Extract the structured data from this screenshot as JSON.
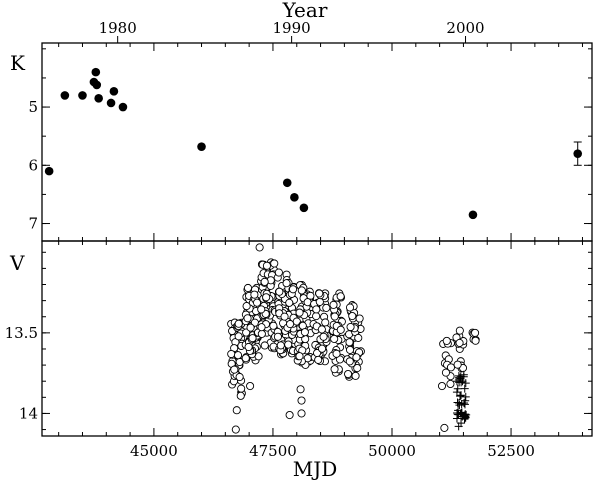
{
  "chart_data": {
    "type": "scatter",
    "xlabel": "MJD",
    "x_top_label": "Year",
    "xlim": [
      42650,
      54200
    ],
    "x_ticks": [
      45000,
      47500,
      50000,
      52500
    ],
    "year_ticks": [
      {
        "label": "1980",
        "mjd": 44239
      },
      {
        "label": "1990",
        "mjd": 47892
      },
      {
        "label": "2000",
        "mjd": 51544
      }
    ],
    "panels": [
      {
        "name": "K",
        "ylabel": "K",
        "ylim": [
          3.9,
          7.3
        ],
        "inverted": true,
        "y_ticks": [
          5,
          6,
          7
        ],
        "series": [
          {
            "marker": "filled-circle",
            "points": [
              {
                "x": 42800,
                "y": 6.1
              },
              {
                "x": 43130,
                "y": 4.8
              },
              {
                "x": 43500,
                "y": 4.8
              },
              {
                "x": 43740,
                "y": 4.57
              },
              {
                "x": 43780,
                "y": 4.4
              },
              {
                "x": 43800,
                "y": 4.62
              },
              {
                "x": 43840,
                "y": 4.85
              },
              {
                "x": 44100,
                "y": 4.93
              },
              {
                "x": 44160,
                "y": 4.73
              },
              {
                "x": 44350,
                "y": 5.0
              },
              {
                "x": 46000,
                "y": 5.68
              },
              {
                "x": 47800,
                "y": 6.3
              },
              {
                "x": 47950,
                "y": 6.55
              },
              {
                "x": 48150,
                "y": 6.73
              },
              {
                "x": 51700,
                "y": 6.85
              },
              {
                "x": 53900,
                "y": 5.8,
                "err": 0.2
              }
            ]
          }
        ]
      },
      {
        "name": "V",
        "ylabel": "V",
        "ylim": [
          12.93,
          14.14
        ],
        "inverted": true,
        "y_ticks": [
          13.5,
          14.0
        ],
        "series": [
          {
            "marker": "open-circle",
            "clusters": [
              {
                "x_range": [
                  46620,
                  46850
                ],
                "y_range": [
                  13.42,
                  13.9
                ],
                "n": 55
              },
              {
                "x_range": [
                  46920,
                  47200
                ],
                "y_range": [
                  13.22,
                  13.68
                ],
                "n": 75
              },
              {
                "x_range": [
                  47250,
                  47550
                ],
                "y_range": [
                  13.05,
                  13.6
                ],
                "n": 80
              },
              {
                "x_range": [
                  47600,
                  47950
                ],
                "y_range": [
                  13.1,
                  13.65
                ],
                "n": 80
              },
              {
                "x_range": [
                  48000,
                  48300
                ],
                "y_range": [
                  13.2,
                  13.72
                ],
                "n": 55
              },
              {
                "x_range": [
                  48350,
                  48650
                ],
                "y_range": [
                  13.25,
                  13.7
                ],
                "n": 50
              },
              {
                "x_range": [
                  48750,
                  48950
                ],
                "y_range": [
                  13.25,
                  13.75
                ],
                "n": 45
              },
              {
                "x_range": [
                  49050,
                  49350
                ],
                "y_range": [
                  13.32,
                  13.78
                ],
                "n": 50
              },
              {
                "x_range": [
                  51050,
                  51250
                ],
                "y_range": [
                  13.55,
                  13.85
                ],
                "n": 12
              },
              {
                "x_range": [
                  51350,
                  51500
                ],
                "y_range": [
                  13.48,
                  13.72
                ],
                "n": 14
              },
              {
                "x_range": [
                  51650,
                  51800
                ],
                "y_range": [
                  13.45,
                  13.55
                ],
                "n": 6
              }
            ],
            "outliers": [
              {
                "x": 47220,
                "y": 12.97
              },
              {
                "x": 46720,
                "y": 14.1
              },
              {
                "x": 46740,
                "y": 13.98
              },
              {
                "x": 47020,
                "y": 13.83
              },
              {
                "x": 47850,
                "y": 14.01
              },
              {
                "x": 48100,
                "y": 14.0
              },
              {
                "x": 48080,
                "y": 13.85
              },
              {
                "x": 48100,
                "y": 13.92
              },
              {
                "x": 51100,
                "y": 14.09
              },
              {
                "x": 51050,
                "y": 13.83
              }
            ]
          },
          {
            "marker": "plus",
            "clusters": [
              {
                "x_range": [
                  51360,
                  51560
                ],
                "y_range": [
                  13.76,
                  14.04
                ],
                "n": 45
              }
            ],
            "outliers": [
              {
                "x": 51400,
                "y": 14.08
              },
              {
                "x": 51450,
                "y": 14.06
              }
            ]
          }
        ]
      }
    ]
  }
}
